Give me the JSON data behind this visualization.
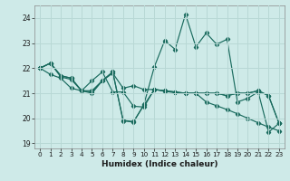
{
  "xlabel": "Humidex (Indice chaleur)",
  "ylabel": "",
  "bg_color": "#ceeae8",
  "grid_color": "#b8d8d5",
  "line_color": "#1a6b5e",
  "xlim": [
    -0.5,
    23.5
  ],
  "ylim": [
    18.8,
    24.5
  ],
  "yticks": [
    19,
    20,
    21,
    22,
    23,
    24
  ],
  "xticks": [
    0,
    1,
    2,
    3,
    4,
    5,
    6,
    7,
    8,
    9,
    10,
    11,
    12,
    13,
    14,
    15,
    16,
    17,
    18,
    19,
    20,
    21,
    22,
    23
  ],
  "series": [
    [
      22.0,
      22.2,
      21.7,
      21.6,
      21.1,
      21.1,
      21.5,
      21.8,
      21.2,
      21.3,
      21.15,
      21.15,
      21.1,
      21.05,
      21.0,
      21.0,
      21.0,
      21.0,
      20.9,
      21.0,
      21.0,
      21.1,
      20.9,
      19.8
    ],
    [
      22.0,
      22.2,
      21.7,
      21.6,
      21.1,
      21.0,
      21.5,
      21.85,
      19.9,
      19.85,
      20.55,
      22.05,
      23.1,
      22.75,
      24.15,
      22.85,
      23.4,
      22.95,
      23.15,
      20.65,
      20.8,
      21.05,
      19.45,
      19.8
    ],
    [
      22.0,
      22.2,
      21.65,
      21.55,
      21.1,
      21.05,
      21.5,
      21.85,
      19.92,
      19.87,
      20.52,
      21.15,
      21.1,
      21.05,
      21.0,
      21.0,
      21.0,
      21.0,
      20.9,
      21.0,
      21.0,
      21.1,
      20.9,
      19.8
    ],
    [
      22.0,
      21.75,
      21.6,
      21.2,
      21.1,
      21.5,
      21.85,
      21.05,
      21.05,
      20.48,
      20.45,
      21.15,
      21.08,
      21.02,
      21.0,
      21.0,
      20.65,
      20.5,
      20.35,
      20.18,
      20.0,
      19.82,
      19.65,
      19.5
    ]
  ]
}
